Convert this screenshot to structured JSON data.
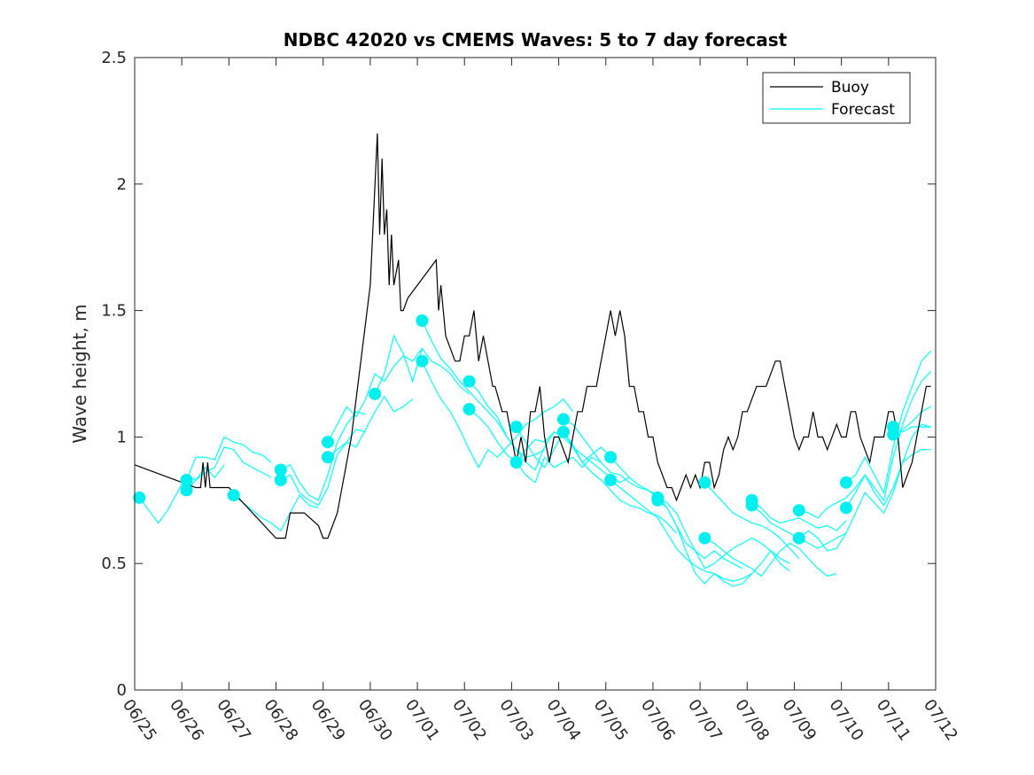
{
  "chart_data": {
    "type": "line",
    "title": "NDBC 42020 vs CMEMS Waves: 5 to 7 day forecast",
    "xlabel": "",
    "ylabel": "Wave height, m",
    "xlim": [
      "06/25",
      "07/12"
    ],
    "ylim": [
      0,
      2.5
    ],
    "x_ticks": [
      "06/25",
      "06/26",
      "06/27",
      "06/28",
      "06/29",
      "06/30",
      "07/01",
      "07/02",
      "07/03",
      "07/04",
      "07/05",
      "07/06",
      "07/07",
      "07/08",
      "07/09",
      "07/10",
      "07/11",
      "07/12"
    ],
    "y_ticks": [
      0,
      0.5,
      1,
      1.5,
      2,
      2.5
    ],
    "y_tick_labels": [
      "0",
      "0.5",
      "1",
      "1.5",
      "2",
      "2.5"
    ],
    "legend": {
      "position": "top-right",
      "entries": [
        "Buoy",
        "Forecast"
      ]
    },
    "colors": {
      "buoy": "#000000",
      "forecast": "#00ffff",
      "marker": "#00f0f0",
      "axes": "#262626"
    },
    "series": [
      {
        "name": "Buoy",
        "x": [
          0.0,
          1.3,
          1.4,
          1.45,
          1.5,
          1.55,
          1.6,
          1.7,
          2.0,
          3.0,
          3.2,
          3.3,
          3.6,
          3.9,
          4.0,
          4.1,
          4.3,
          4.6,
          5.0,
          5.15,
          5.2,
          5.25,
          5.3,
          5.35,
          5.4,
          5.45,
          5.5,
          5.6,
          5.65,
          5.7,
          5.8,
          6.0,
          6.4,
          6.45,
          6.5,
          6.6,
          6.8,
          6.9,
          7.0,
          7.1,
          7.2,
          7.3,
          7.4,
          7.5,
          7.6,
          7.65,
          7.8,
          7.9,
          8.0,
          8.1,
          8.2,
          8.3,
          8.4,
          8.5,
          8.6,
          8.7,
          8.8,
          8.9,
          9.0,
          9.2,
          9.3,
          9.4,
          9.5,
          9.6,
          9.7,
          9.8,
          9.9,
          10.0,
          10.1,
          10.2,
          10.3,
          10.4,
          10.5,
          10.6,
          10.7,
          10.8,
          10.9,
          11.0,
          11.1,
          11.2,
          11.3,
          11.4,
          11.5,
          11.6,
          11.7,
          11.8,
          11.9,
          12.0,
          12.1,
          12.2,
          12.3,
          12.4,
          12.5,
          12.6,
          12.7,
          12.8,
          12.9,
          13.0,
          13.2,
          13.4,
          13.6,
          13.7,
          13.8,
          13.9,
          14.0,
          14.1,
          14.2,
          14.3,
          14.4,
          14.5,
          14.6,
          14.7,
          14.8,
          14.9,
          15.0,
          15.1,
          15.2,
          15.3,
          15.4,
          15.5,
          15.6,
          15.7,
          15.8,
          15.9,
          16.0,
          16.1,
          16.2,
          16.3,
          16.4,
          16.5,
          16.6,
          16.7,
          16.8,
          16.9
        ],
        "values": [
          0.89,
          0.8,
          0.8,
          0.9,
          0.8,
          0.9,
          0.8,
          0.8,
          0.8,
          0.6,
          0.6,
          0.7,
          0.7,
          0.65,
          0.6,
          0.6,
          0.7,
          1.0,
          1.6,
          2.2,
          1.8,
          2.1,
          1.8,
          1.9,
          1.6,
          1.8,
          1.6,
          1.7,
          1.5,
          1.5,
          1.55,
          1.6,
          1.7,
          1.5,
          1.6,
          1.4,
          1.3,
          1.3,
          1.4,
          1.4,
          1.5,
          1.3,
          1.4,
          1.3,
          1.2,
          1.2,
          1.1,
          1.1,
          1.0,
          0.9,
          1.0,
          0.9,
          1.1,
          1.1,
          1.2,
          1.0,
          0.9,
          1.0,
          1.0,
          0.9,
          1.0,
          1.1,
          1.1,
          1.2,
          1.2,
          1.2,
          1.3,
          1.4,
          1.5,
          1.4,
          1.5,
          1.4,
          1.2,
          1.2,
          1.1,
          1.1,
          1.0,
          1.0,
          0.9,
          0.85,
          0.8,
          0.8,
          0.75,
          0.8,
          0.85,
          0.8,
          0.85,
          0.8,
          0.9,
          0.9,
          0.8,
          0.85,
          0.95,
          1.0,
          0.95,
          1.0,
          1.1,
          1.1,
          1.2,
          1.2,
          1.3,
          1.3,
          1.2,
          1.1,
          1.0,
          0.95,
          1.0,
          1.0,
          1.1,
          1.0,
          1.0,
          0.95,
          1.0,
          1.05,
          1.0,
          1.0,
          1.1,
          1.1,
          1.0,
          0.95,
          0.9,
          1.0,
          1.0,
          1.0,
          1.1,
          1.1,
          1.0,
          0.8,
          0.85,
          0.9,
          1.0,
          1.1,
          1.2,
          1.2
        ]
      },
      {
        "name": "Forecast",
        "x": [
          0.1,
          0.3,
          0.5,
          0.7,
          0.9,
          1.1,
          1.3,
          1.5,
          1.7,
          1.9
        ],
        "values": [
          0.76,
          0.71,
          0.66,
          0.71,
          0.78,
          0.85,
          0.83,
          0.88,
          0.84,
          0.89
        ]
      },
      {
        "name": "Forecast",
        "x": [
          1.1,
          1.3,
          1.5,
          1.7,
          1.9,
          2.1,
          2.3,
          2.5,
          2.7,
          2.9
        ],
        "values": [
          0.79,
          0.83,
          0.86,
          0.88,
          0.96,
          0.95,
          0.9,
          0.88,
          0.86,
          0.84
        ]
      },
      {
        "name": "Forecast",
        "x": [
          1.1,
          1.3,
          1.5,
          1.7,
          1.9,
          2.1,
          2.3,
          2.5,
          2.7,
          2.9
        ],
        "values": [
          0.83,
          0.92,
          0.92,
          0.91,
          1.0,
          0.98,
          0.97,
          0.94,
          0.93,
          0.9
        ]
      },
      {
        "name": "Forecast",
        "x": [
          2.1,
          2.3,
          2.5,
          2.7,
          2.9,
          3.1,
          3.3,
          3.5,
          3.7,
          3.9
        ],
        "values": [
          0.77,
          0.74,
          0.71,
          0.68,
          0.66,
          0.63,
          0.7,
          0.77,
          0.73,
          0.72
        ]
      },
      {
        "name": "Forecast",
        "x": [
          3.1,
          3.3,
          3.5,
          3.7,
          3.9,
          4.1,
          4.3,
          4.5,
          4.7,
          4.9
        ],
        "values": [
          0.87,
          0.89,
          0.82,
          0.77,
          0.75,
          0.85,
          0.98,
          1.05,
          1.1,
          1.09
        ]
      },
      {
        "name": "Forecast",
        "x": [
          3.1,
          3.3,
          3.5,
          3.7,
          3.9,
          4.1,
          4.3,
          4.5,
          4.7,
          4.9
        ],
        "values": [
          0.83,
          0.85,
          0.78,
          0.75,
          0.73,
          0.8,
          0.93,
          0.98,
          1.03,
          1.02
        ]
      },
      {
        "name": "Forecast",
        "x": [
          4.1,
          4.3,
          4.5,
          4.7,
          4.9,
          5.1,
          5.3,
          5.5,
          5.7,
          5.9,
          6.1
        ],
        "values": [
          0.98,
          1.05,
          1.12,
          1.08,
          1.15,
          1.25,
          1.22,
          1.28,
          1.32,
          1.3,
          1.35
        ]
      },
      {
        "name": "Forecast",
        "x": [
          4.1,
          4.3,
          4.5,
          4.7,
          4.9,
          5.1,
          5.3,
          5.5,
          5.7,
          5.9
        ],
        "values": [
          0.92,
          0.95,
          0.98,
          0.96,
          1.03,
          1.1,
          1.16,
          1.1,
          1.12,
          1.15
        ]
      },
      {
        "name": "Forecast",
        "x": [
          5.1,
          5.3,
          5.5,
          5.7,
          5.9,
          6.1,
          6.3,
          6.5,
          6.7,
          6.9,
          7.1
        ],
        "values": [
          1.17,
          1.25,
          1.4,
          1.33,
          1.22,
          1.35,
          1.3,
          1.28,
          1.25,
          1.2,
          1.17
        ]
      },
      {
        "name": "Forecast",
        "x": [
          6.1,
          6.3,
          6.5,
          6.7,
          6.9,
          7.1,
          7.3,
          7.5,
          7.7,
          7.9,
          8.1,
          8.3,
          8.5,
          8.7
        ],
        "values": [
          1.46,
          1.38,
          1.31,
          1.27,
          1.22,
          1.18,
          1.14,
          1.1,
          1.06,
          1.0,
          0.95,
          0.92,
          0.93,
          0.95
        ]
      },
      {
        "name": "Forecast",
        "x": [
          6.1,
          6.3,
          6.5,
          6.7,
          6.9,
          7.1,
          7.3,
          7.5,
          7.7,
          7.9,
          8.1,
          8.3,
          8.5,
          8.7,
          8.9,
          9.1,
          9.3
        ],
        "values": [
          1.3,
          1.22,
          1.15,
          1.1,
          1.03,
          0.95,
          0.88,
          0.95,
          0.92,
          0.96,
          1.0,
          1.05,
          1.07,
          1.1,
          1.12,
          1.15,
          1.1
        ]
      },
      {
        "name": "Forecast",
        "x": [
          7.1,
          7.3,
          7.5,
          7.7,
          7.9,
          8.1,
          8.3,
          8.5,
          8.7,
          8.9,
          9.1
        ],
        "values": [
          1.22,
          1.18,
          1.12,
          1.08,
          1.0,
          0.95,
          0.9,
          0.87,
          0.96,
          1.02,
          1.0
        ]
      },
      {
        "name": "Forecast",
        "x": [
          7.1,
          7.3,
          7.5,
          7.7,
          7.9,
          8.1,
          8.3,
          8.5,
          8.7,
          8.9,
          9.1,
          9.3,
          9.5,
          9.7,
          9.9
        ],
        "values": [
          1.11,
          1.08,
          1.04,
          0.98,
          0.93,
          0.9,
          0.85,
          0.82,
          0.92,
          0.88,
          0.9,
          0.92,
          0.88,
          0.92,
          0.9
        ]
      },
      {
        "name": "Forecast",
        "x": [
          8.1,
          8.3,
          8.5,
          8.7,
          8.9,
          9.1,
          9.3,
          9.5,
          9.7,
          9.9,
          10.1
        ],
        "values": [
          1.04,
          0.98,
          0.92,
          0.88,
          0.95,
          1.02,
          0.96,
          0.9,
          0.93,
          0.96,
          0.92
        ]
      },
      {
        "name": "Forecast",
        "x": [
          8.1,
          8.3,
          8.5,
          8.7,
          8.9,
          9.1,
          9.3,
          9.5,
          9.7,
          9.9,
          10.1,
          10.3,
          10.5
        ],
        "values": [
          0.9,
          0.95,
          0.99,
          0.98,
          1.02,
          1.0,
          0.96,
          0.93,
          0.9,
          0.87,
          0.84,
          0.82,
          0.84
        ]
      },
      {
        "name": "Forecast",
        "x": [
          9.1,
          9.3,
          9.5,
          9.7,
          9.9,
          10.1,
          10.3,
          10.5,
          10.7,
          10.9,
          11.1
        ],
        "values": [
          1.07,
          1.05,
          1.0,
          0.95,
          0.9,
          0.86,
          0.85,
          0.82,
          0.8,
          0.79,
          0.76
        ]
      },
      {
        "name": "Forecast",
        "x": [
          9.1,
          9.3,
          9.5,
          9.7,
          9.9,
          10.1,
          10.3,
          10.5,
          10.7,
          10.9,
          11.1,
          11.3,
          11.5
        ],
        "values": [
          1.02,
          0.97,
          0.9,
          0.86,
          0.83,
          0.79,
          0.75,
          0.73,
          0.72,
          0.7,
          0.69,
          0.66,
          0.62
        ]
      },
      {
        "name": "Forecast",
        "x": [
          10.1,
          10.3,
          10.5,
          10.7,
          10.9,
          11.1,
          11.3,
          11.5,
          11.7,
          11.9,
          12.1,
          12.3,
          12.5,
          12.7,
          12.9
        ],
        "values": [
          0.92,
          0.88,
          0.84,
          0.81,
          0.79,
          0.77,
          0.72,
          0.65,
          0.58,
          0.55,
          0.52,
          0.55,
          0.52,
          0.5,
          0.48
        ]
      },
      {
        "name": "Forecast",
        "x": [
          10.1,
          10.3,
          10.5,
          10.7,
          10.9,
          11.1,
          11.3,
          11.5,
          11.7,
          11.9,
          12.1,
          12.3,
          12.5,
          12.7,
          12.9,
          13.1
        ],
        "values": [
          0.83,
          0.8,
          0.77,
          0.74,
          0.71,
          0.68,
          0.62,
          0.56,
          0.52,
          0.49,
          0.47,
          0.46,
          0.44,
          0.43,
          0.44,
          0.46
        ]
      },
      {
        "name": "Forecast",
        "x": [
          11.1,
          11.3,
          11.5,
          11.7,
          11.9,
          12.1,
          12.3,
          12.5,
          12.7,
          12.9,
          13.1,
          13.3,
          13.5,
          13.7,
          13.9
        ],
        "values": [
          0.76,
          0.74,
          0.7,
          0.62,
          0.55,
          0.48,
          0.5,
          0.53,
          0.56,
          0.58,
          0.6,
          0.58,
          0.55,
          0.52,
          0.5
        ]
      },
      {
        "name": "Forecast",
        "x": [
          11.1,
          11.3,
          11.5,
          11.7,
          11.9,
          12.1,
          12.3,
          12.5,
          12.7,
          12.9,
          13.1,
          13.3,
          13.5,
          13.7,
          13.9
        ],
        "values": [
          0.75,
          0.72,
          0.65,
          0.55,
          0.46,
          0.42,
          0.46,
          0.43,
          0.41,
          0.42,
          0.46,
          0.5,
          0.55,
          0.5,
          0.47
        ]
      },
      {
        "name": "Forecast",
        "x": [
          12.1,
          12.3,
          12.5,
          12.7,
          12.9,
          13.1,
          13.3,
          13.5,
          13.7,
          13.9,
          14.1
        ],
        "values": [
          0.82,
          0.78,
          0.74,
          0.7,
          0.68,
          0.66,
          0.65,
          0.63,
          0.6,
          0.56,
          0.52
        ]
      },
      {
        "name": "Forecast",
        "x": [
          12.1,
          12.3,
          12.5,
          12.7,
          12.9,
          13.1,
          13.3,
          13.5,
          13.7,
          13.9,
          14.1,
          14.3,
          14.5,
          14.7,
          14.9
        ],
        "values": [
          0.6,
          0.58,
          0.55,
          0.52,
          0.5,
          0.48,
          0.45,
          0.5,
          0.55,
          0.58,
          0.56,
          0.52,
          0.48,
          0.45,
          0.46
        ]
      },
      {
        "name": "Forecast",
        "x": [
          13.1,
          13.3,
          13.5,
          13.7,
          13.9,
          14.1,
          14.3,
          14.5,
          14.7,
          14.9,
          15.1
        ],
        "values": [
          0.75,
          0.72,
          0.68,
          0.66,
          0.67,
          0.68,
          0.66,
          0.64,
          0.65,
          0.63,
          0.67
        ]
      },
      {
        "name": "Forecast",
        "x": [
          13.1,
          13.3,
          13.5,
          13.7,
          13.9,
          14.1,
          14.3,
          14.5,
          14.7,
          14.9,
          15.1
        ],
        "values": [
          0.73,
          0.7,
          0.66,
          0.64,
          0.62,
          0.6,
          0.58,
          0.56,
          0.58,
          0.6,
          0.62
        ]
      },
      {
        "name": "Forecast",
        "x": [
          14.1,
          14.3,
          14.5,
          14.7,
          14.9,
          15.1,
          15.3,
          15.5,
          15.7,
          15.9,
          16.1,
          16.3,
          16.5,
          16.7,
          16.9
        ],
        "values": [
          0.71,
          0.7,
          0.68,
          0.72,
          0.74,
          0.76,
          0.8,
          0.85,
          0.78,
          0.73,
          0.8,
          0.9,
          1.0,
          1.05,
          1.04
        ]
      },
      {
        "name": "Forecast",
        "x": [
          14.1,
          14.3,
          14.5,
          14.7,
          14.9,
          15.1,
          15.3,
          15.5,
          15.7,
          15.9,
          16.1,
          16.3,
          16.5,
          16.7,
          16.9
        ],
        "values": [
          0.6,
          0.63,
          0.6,
          0.55,
          0.56,
          0.62,
          0.7,
          0.78,
          0.74,
          0.7,
          0.78,
          0.9,
          0.93,
          0.95,
          0.95
        ]
      },
      {
        "name": "Forecast",
        "x": [
          15.1,
          15.3,
          15.5,
          15.7,
          15.9,
          16.1,
          16.3,
          16.5,
          16.7,
          16.9
        ],
        "values": [
          0.82,
          0.85,
          0.92,
          0.85,
          0.78,
          0.96,
          1.1,
          1.2,
          1.3,
          1.34
        ]
      },
      {
        "name": "Forecast",
        "x": [
          15.1,
          15.3,
          15.5,
          15.7,
          15.9,
          16.1,
          16.3,
          16.5,
          16.7,
          16.9
        ],
        "values": [
          0.72,
          0.78,
          0.85,
          0.8,
          0.75,
          0.92,
          1.05,
          1.15,
          1.22,
          1.26
        ]
      },
      {
        "name": "Forecast",
        "x": [
          16.1,
          16.3,
          16.5,
          16.7,
          16.9
        ],
        "values": [
          1.04,
          1.02,
          1.04,
          1.04,
          1.04
        ]
      },
      {
        "name": "Forecast",
        "x": [
          16.1,
          16.3,
          16.5,
          16.7,
          16.9
        ],
        "values": [
          1.01,
          1.03,
          1.06,
          1.1,
          1.12
        ]
      }
    ]
  }
}
